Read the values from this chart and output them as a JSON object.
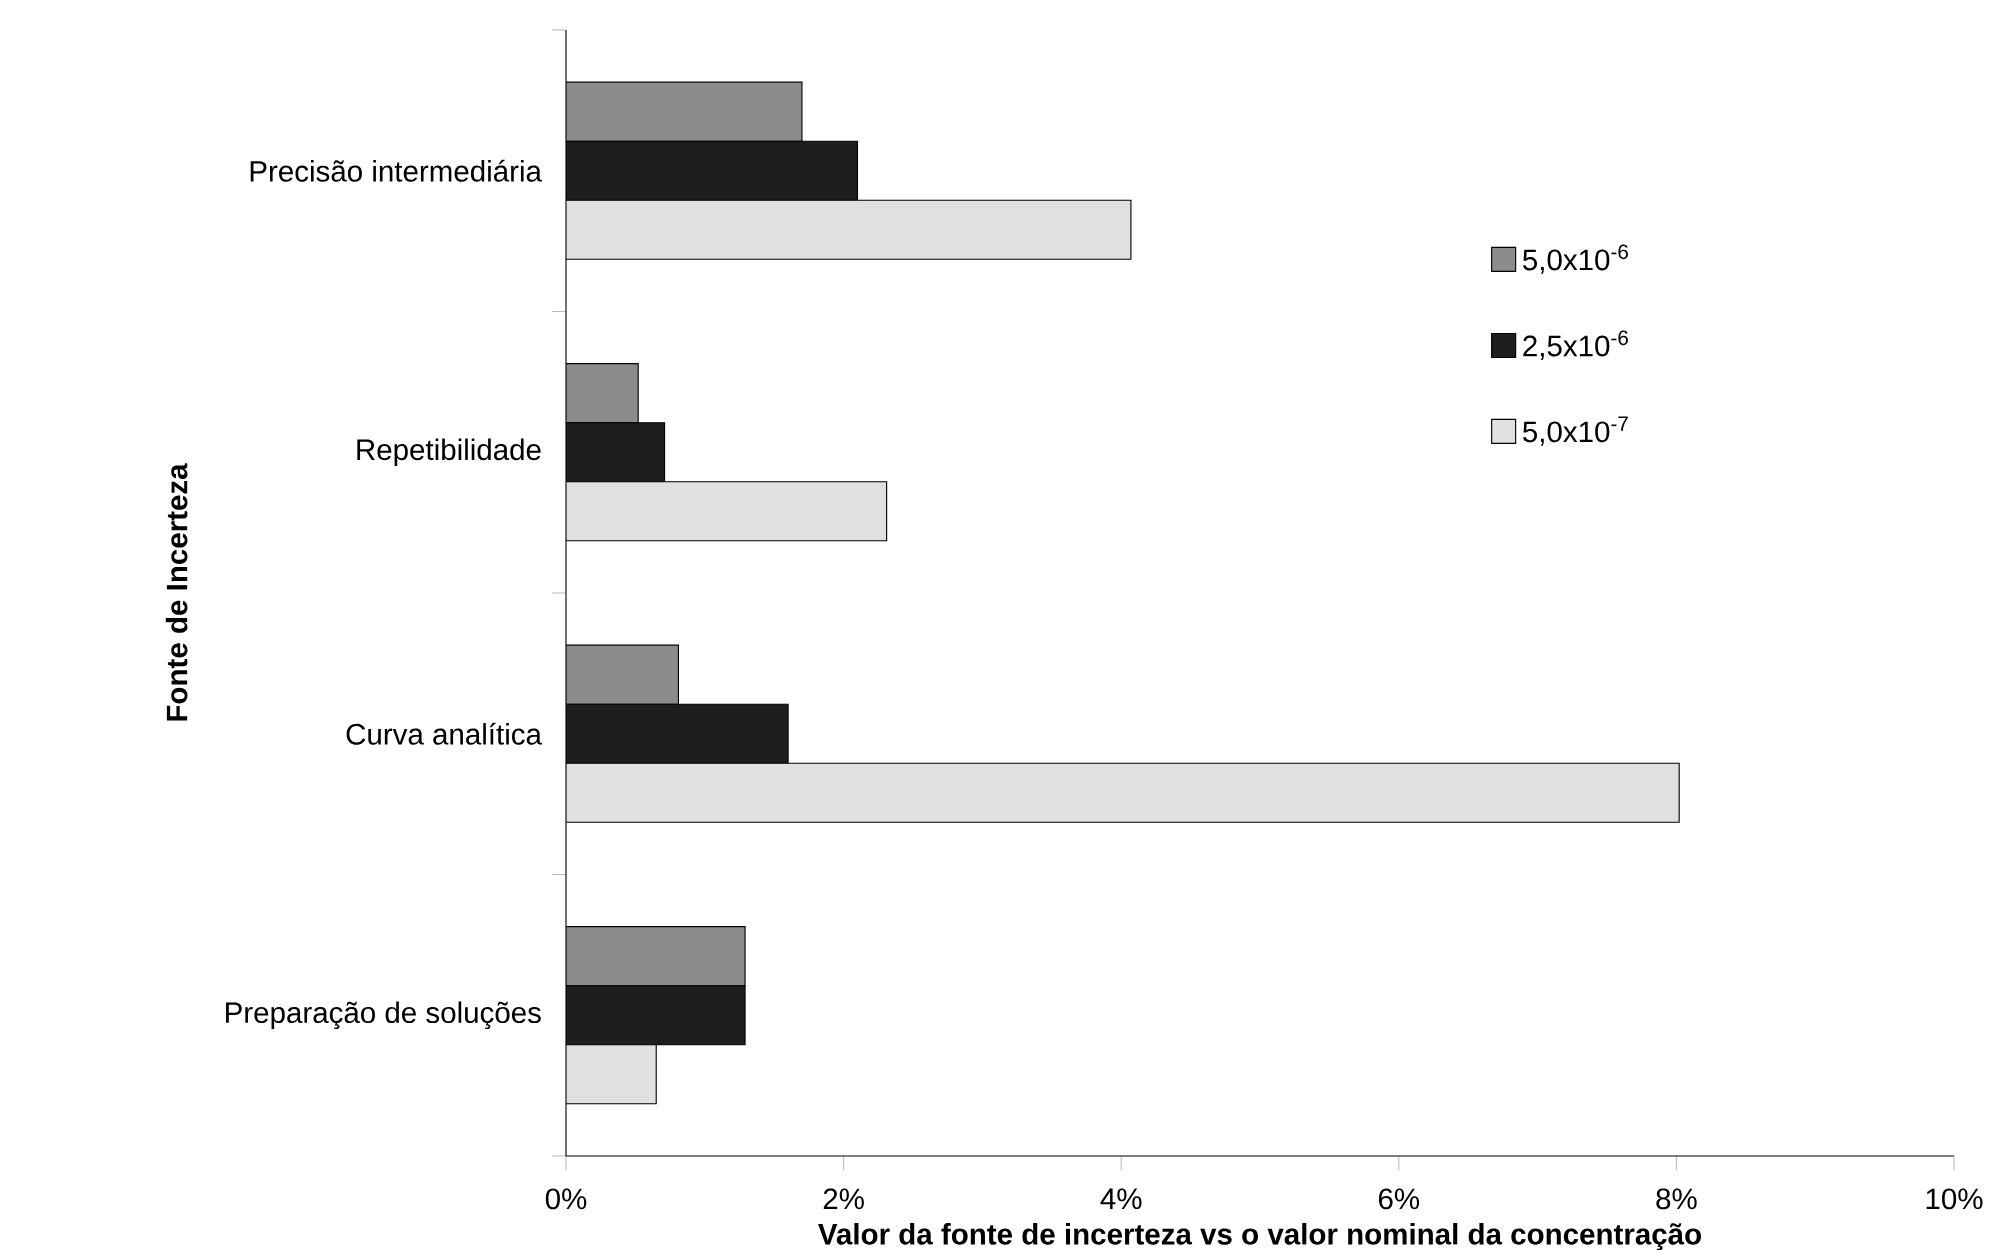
{
  "chart_data": {
    "type": "bar",
    "orientation": "horizontal",
    "xlabel": "Valor da fonte de incerteza vs o valor nominal da concentração",
    "ylabel": "Fonte de Incerteza",
    "categories": [
      "Precisão intermediária",
      "Repetibilidade",
      "Curva analítica",
      "Preparação de soluções"
    ],
    "series": [
      {
        "name": "5,0x10$^{-6}$",
        "color": "#8c8c8c",
        "values": [
          1.7,
          0.52,
          0.81,
          1.29
        ]
      },
      {
        "name": "2,5x10$^{-6}$",
        "color": "#1e1e1e",
        "values": [
          2.1,
          0.71,
          1.6,
          1.29
        ]
      },
      {
        "name": "5,0x10$^{-7}$",
        "color": "#e0e0e0",
        "values": [
          4.07,
          2.31,
          8.02,
          0.65
        ]
      }
    ],
    "xlim": [
      0,
      10
    ],
    "xticks": [
      {
        "value": 0,
        "label": "0%"
      },
      {
        "value": 2,
        "label": "2%"
      },
      {
        "value": 4,
        "label": "4%"
      },
      {
        "value": 6,
        "label": "6%"
      },
      {
        "value": 8,
        "label": "8%"
      },
      {
        "value": 10,
        "label": "10%"
      }
    ],
    "legend": "right",
    "grid": false
  }
}
